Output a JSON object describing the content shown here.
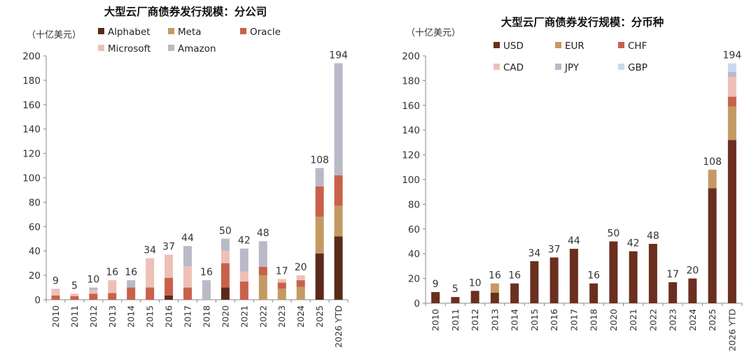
{
  "colors": {
    "Alphabet": "#5a2a1a",
    "Meta": "#c49a63",
    "Oracle": "#c8614a",
    "Microsoft": "#edc0b8",
    "Amazon": "#b9b9c8",
    "USD": "#6b2f1f",
    "EUR": "#c49a63",
    "CHF": "#c8614a",
    "CAD": "#edc0b8",
    "JPY": "#b9b9c8",
    "GBP": "#c6daf0"
  },
  "chart_data": [
    {
      "type": "bar",
      "stacked": true,
      "title": "大型云厂商债券发行规模：分公司",
      "ylabel": "（十亿美元）",
      "ylim": [
        0,
        200
      ],
      "yticks": [
        0,
        20,
        40,
        60,
        80,
        100,
        120,
        140,
        160,
        180,
        200
      ],
      "categories": [
        "2010",
        "2011",
        "2012",
        "2013",
        "2014",
        "2015",
        "2016",
        "2017",
        "2018",
        "2020",
        "2021",
        "2022",
        "2023",
        "2024",
        "2025",
        "2026 YTD"
      ],
      "totals": [
        "9",
        "5",
        "10",
        "16",
        "16",
        "34",
        "37",
        "44",
        "16",
        "50",
        "42",
        "48",
        "17",
        "20",
        "108",
        "194"
      ],
      "legend": [
        "Alphabet",
        "Meta",
        "Oracle",
        "Microsoft",
        "Amazon"
      ],
      "series": [
        {
          "name": "Alphabet",
          "values": [
            0,
            0,
            0,
            0,
            0,
            0,
            3.5,
            0,
            0,
            10,
            0,
            0,
            0,
            0,
            38,
            52
          ]
        },
        {
          "name": "Meta",
          "values": [
            0,
            0,
            0,
            0,
            0,
            0,
            0,
            0,
            0,
            0,
            0,
            20,
            9,
            10.5,
            30,
            25
          ]
        },
        {
          "name": "Oracle",
          "values": [
            3.5,
            3,
            5,
            5.5,
            10,
            10,
            14.5,
            10,
            0,
            20,
            15,
            7,
            5,
            5.5,
            25,
            25
          ]
        },
        {
          "name": "Microsoft",
          "values": [
            5.5,
            2,
            3,
            10.5,
            0,
            24,
            19,
            17.5,
            0,
            10,
            8,
            0,
            3,
            4,
            0,
            0
          ]
        },
        {
          "name": "Amazon",
          "values": [
            0,
            0,
            2,
            0,
            6,
            0,
            0,
            16.5,
            16,
            10,
            19,
            21,
            0,
            0,
            15,
            92
          ]
        }
      ]
    },
    {
      "type": "bar",
      "stacked": true,
      "title": "大型云厂商债券发行规模：分币种",
      "ylabel": "（十亿美元）",
      "ylim": [
        0,
        200
      ],
      "yticks": [
        0,
        20,
        40,
        60,
        80,
        100,
        120,
        140,
        160,
        180,
        200
      ],
      "categories": [
        "2010",
        "2011",
        "2012",
        "2013",
        "2014",
        "2015",
        "2016",
        "2017",
        "2018",
        "2020",
        "2021",
        "2022",
        "2023",
        "2024",
        "2025",
        "2026 YTD"
      ],
      "totals": [
        "9",
        "5",
        "10",
        "16",
        "16",
        "34",
        "37",
        "44",
        "16",
        "50",
        "42",
        "48",
        "17",
        "20",
        "108",
        "194"
      ],
      "legend": [
        "USD",
        "EUR",
        "CHF",
        "CAD",
        "JPY",
        "GBP"
      ],
      "series": [
        {
          "name": "USD",
          "values": [
            9,
            5,
            10,
            8.5,
            16,
            34,
            37,
            44,
            16,
            50,
            42,
            48,
            17,
            20,
            93,
            132
          ]
        },
        {
          "name": "EUR",
          "values": [
            0,
            0,
            0,
            7.5,
            0,
            0,
            0,
            0,
            0,
            0,
            0,
            0,
            0,
            0,
            15,
            27
          ]
        },
        {
          "name": "CHF",
          "values": [
            0,
            0,
            0,
            0,
            0,
            0,
            0,
            0,
            0,
            0,
            0,
            0,
            0,
            0,
            0,
            8
          ]
        },
        {
          "name": "CAD",
          "values": [
            0,
            0,
            0,
            0,
            0,
            0,
            0,
            0,
            0,
            0,
            0,
            0,
            0,
            0,
            0,
            16
          ]
        },
        {
          "name": "JPY",
          "values": [
            0,
            0,
            0,
            0,
            0,
            0,
            0,
            0,
            0,
            0,
            0,
            0,
            0,
            0,
            0,
            4
          ]
        },
        {
          "name": "GBP",
          "values": [
            0,
            0,
            0,
            0,
            0,
            0,
            0,
            0,
            0,
            0,
            0,
            0,
            0,
            0,
            0,
            7
          ]
        }
      ]
    }
  ]
}
